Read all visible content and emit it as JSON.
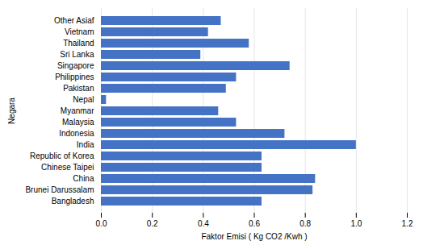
{
  "chart_data": {
    "type": "bar",
    "orientation": "horizontal",
    "categories": [
      "Bangladesh",
      "Brunei Darussalam",
      "China",
      "Chinese Taipei",
      "Republic of Korea",
      "India",
      "Indonesia",
      "Malaysia",
      "Myanmar",
      "Nepal",
      "Pakistan",
      "Philippines",
      "Singapore",
      "Sri Lanka",
      "Thailand",
      "Vietnam",
      "Other Asiaf"
    ],
    "values": [
      0.63,
      0.83,
      0.84,
      0.63,
      0.63,
      1.0,
      0.72,
      0.53,
      0.46,
      0.02,
      0.49,
      0.53,
      0.74,
      0.39,
      0.58,
      0.42,
      0.47
    ],
    "color": "#4472C4",
    "xlabel": "Faktor Emisi ( Kg CO2 /Kwh )",
    "ylabel": "Negara",
    "xlim": [
      0.0,
      1.2
    ],
    "xticks": [
      {
        "value": 0,
        "label": "0.0"
      },
      0.2,
      0.4,
      0.6,
      0.8,
      {
        "value": 1,
        "label": "1.0"
      },
      1.2
    ],
    "grid": true
  }
}
